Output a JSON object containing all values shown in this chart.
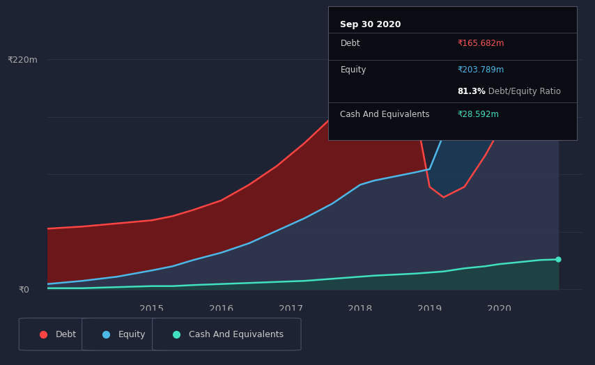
{
  "background_color": "#1e2333",
  "tooltip_bg": "#0a0c14",
  "y_label_top": "₹220m",
  "y_label_bottom": "₹0",
  "tooltip": {
    "date": "Sep 30 2020",
    "debt_label": "Debt",
    "debt_value": "₹165.682m",
    "equity_label": "Equity",
    "equity_value": "₹203.789m",
    "ratio": "81.3%",
    "ratio_suffix": " Debt/Equity Ratio",
    "cash_label": "Cash And Equivalents",
    "cash_value": "₹28.592m"
  },
  "x_ticks": [
    "2015",
    "2016",
    "2017",
    "2018",
    "2019",
    "2020"
  ],
  "x_tick_pos": [
    2015,
    2016,
    2017,
    2018,
    2019,
    2020
  ],
  "debt_color": "#ff4444",
  "equity_color": "#4db8e8",
  "cash_color": "#40e0c0",
  "debt_fill_color": "#7a1515",
  "equity_fill_color": "#1a3f5c",
  "cash_fill_color": "#184840",
  "years": [
    2013.5,
    2014.0,
    2014.5,
    2015.0,
    2015.3,
    2015.6,
    2016.0,
    2016.4,
    2016.8,
    2017.2,
    2017.6,
    2018.0,
    2018.2,
    2018.5,
    2018.8,
    2019.0,
    2019.2,
    2019.5,
    2019.8,
    2020.0,
    2020.3,
    2020.6,
    2020.85
  ],
  "debt": [
    58,
    60,
    63,
    66,
    70,
    76,
    85,
    100,
    118,
    140,
    165,
    185,
    190,
    186,
    168,
    98,
    88,
    98,
    128,
    152,
    162,
    165,
    166
  ],
  "equity": [
    5,
    8,
    12,
    18,
    22,
    28,
    35,
    44,
    56,
    68,
    82,
    100,
    104,
    108,
    112,
    115,
    148,
    175,
    195,
    208,
    214,
    212,
    204
  ],
  "cash": [
    1,
    1,
    2,
    3,
    3,
    4,
    5,
    6,
    7,
    8,
    10,
    12,
    13,
    14,
    15,
    16,
    17,
    20,
    22,
    24,
    26,
    28,
    28.5
  ],
  "ymax": 220,
  "ymin": -8,
  "xlim_min": 2013.5,
  "xlim_max": 2021.2
}
